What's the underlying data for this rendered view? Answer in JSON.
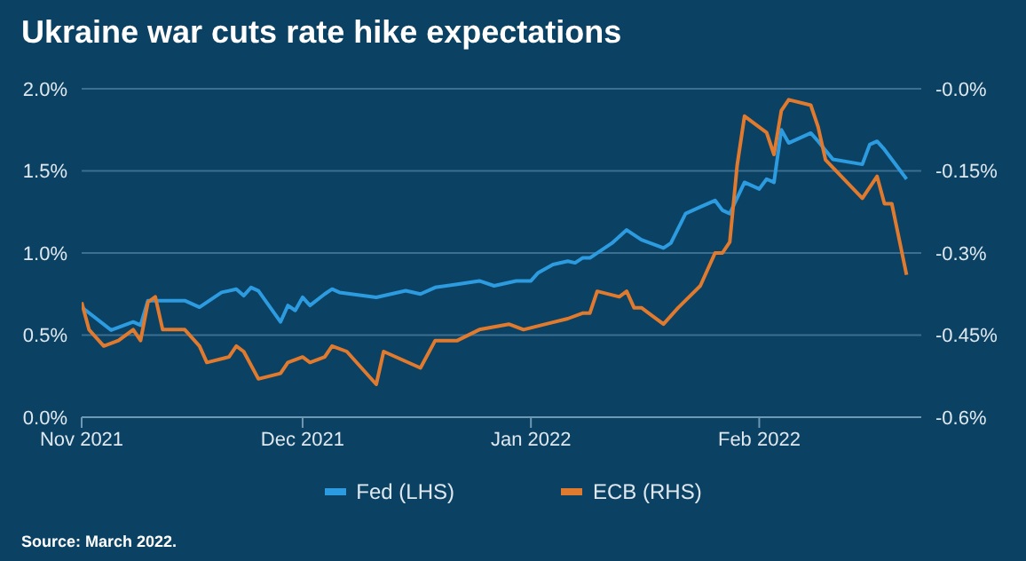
{
  "chart_data": {
    "type": "line",
    "title": "Ukraine war cuts rate hike expectations",
    "annotations": [
      "Source: March 2022."
    ],
    "xlim": [
      "2021-11-01",
      "2022-02-23"
    ],
    "xticks": [
      {
        "value": "2021-11-01",
        "label": "Nov 2021"
      },
      {
        "value": "2021-12-01",
        "label": "Dec 2021"
      },
      {
        "value": "2022-01-01",
        "label": "Jan 2022"
      },
      {
        "value": "2022-02-01",
        "label": "Feb 2022"
      }
    ],
    "ylim": [
      0,
      2
    ],
    "yticks": [
      {
        "value": 0,
        "label": "0.0%"
      },
      {
        "value": 0.5,
        "label": "0.5%"
      },
      {
        "value": 1,
        "label": "1.0%"
      },
      {
        "value": 1.5,
        "label": "1.5%"
      },
      {
        "value": 2,
        "label": "2.0%"
      }
    ],
    "y2lim": [
      -0.6,
      0
    ],
    "y2ticks": [
      {
        "value": -0.6,
        "label": "-0.6%"
      },
      {
        "value": -0.45,
        "label": "-0.45%"
      },
      {
        "value": -0.3,
        "label": "-0.3%"
      },
      {
        "value": -0.15,
        "label": "-0.15%"
      },
      {
        "value": 0,
        "label": "-0.0%"
      }
    ],
    "grid": "y",
    "legend": "bottom",
    "marker": "none",
    "line_style": "solid",
    "series": [
      {
        "name": "Fed (LHS)",
        "color": "#2d9be0",
        "x": [
          "2021-11-01",
          "2021-11-05",
          "2021-11-08",
          "2021-11-09",
          "2021-11-10",
          "2021-11-15",
          "2021-11-17",
          "2021-11-20",
          "2021-11-22",
          "2021-11-23",
          "2021-11-24",
          "2021-11-25",
          "2021-11-28",
          "2021-11-29",
          "2021-11-30",
          "2021-12-01",
          "2021-12-02",
          "2021-12-04",
          "2021-12-05",
          "2021-12-06",
          "2021-12-11",
          "2021-12-15",
          "2021-12-17",
          "2021-12-19",
          "2021-12-22",
          "2021-12-25",
          "2021-12-27",
          "2021-12-30",
          "2022-01-01",
          "2022-01-02",
          "2022-01-04",
          "2022-01-06",
          "2022-01-07",
          "2022-01-08",
          "2022-01-09",
          "2022-01-12",
          "2022-01-14",
          "2022-01-16",
          "2022-01-19",
          "2022-01-20",
          "2022-01-22",
          "2022-01-24",
          "2022-01-26",
          "2022-01-27",
          "2022-01-28",
          "2022-01-30",
          "2022-02-01",
          "2022-02-02",
          "2022-02-03",
          "2022-02-04",
          "2022-02-05",
          "2022-02-08",
          "2022-02-09",
          "2022-02-11",
          "2022-02-15",
          "2022-02-16",
          "2022-02-17",
          "2022-02-18",
          "2022-02-21"
        ],
        "values": [
          0.67,
          0.53,
          0.58,
          0.56,
          0.71,
          0.71,
          0.67,
          0.76,
          0.78,
          0.74,
          0.79,
          0.77,
          0.58,
          0.68,
          0.65,
          0.73,
          0.68,
          0.75,
          0.78,
          0.76,
          0.73,
          0.77,
          0.75,
          0.79,
          0.81,
          0.83,
          0.8,
          0.83,
          0.83,
          0.88,
          0.93,
          0.95,
          0.94,
          0.97,
          0.97,
          1.06,
          1.14,
          1.08,
          1.03,
          1.06,
          1.24,
          1.28,
          1.32,
          1.26,
          1.24,
          1.43,
          1.39,
          1.45,
          1.43,
          1.75,
          1.67,
          1.73,
          1.68,
          1.57,
          1.54,
          1.66,
          1.68,
          1.63,
          1.45
        ]
      },
      {
        "name": "ECB (RHS)",
        "color": "#e07a2e",
        "axis": "y2",
        "x": [
          "2021-11-01",
          "2021-11-02",
          "2021-11-04",
          "2021-11-06",
          "2021-11-08",
          "2021-11-09",
          "2021-11-10",
          "2021-11-11",
          "2021-11-12",
          "2021-11-15",
          "2021-11-17",
          "2021-11-18",
          "2021-11-21",
          "2021-11-22",
          "2021-11-23",
          "2021-11-25",
          "2021-11-28",
          "2021-11-29",
          "2021-12-01",
          "2021-12-02",
          "2021-12-04",
          "2021-12-05",
          "2021-12-07",
          "2021-12-11",
          "2021-12-12",
          "2021-12-17",
          "2021-12-19",
          "2021-12-22",
          "2021-12-25",
          "2021-12-29",
          "2021-12-31",
          "2022-01-03",
          "2022-01-06",
          "2022-01-08",
          "2022-01-09",
          "2022-01-10",
          "2022-01-13",
          "2022-01-14",
          "2022-01-15",
          "2022-01-16",
          "2022-01-17",
          "2022-01-19",
          "2022-01-21",
          "2022-01-24",
          "2022-01-26",
          "2022-01-27",
          "2022-01-28",
          "2022-01-29",
          "2022-01-30",
          "2022-02-02",
          "2022-02-03",
          "2022-02-04",
          "2022-02-05",
          "2022-02-08",
          "2022-02-09",
          "2022-02-10",
          "2022-02-15",
          "2022-02-17",
          "2022-02-18",
          "2022-02-19",
          "2022-02-21"
        ],
        "values": [
          -0.39,
          -0.44,
          -0.47,
          -0.46,
          -0.44,
          -0.46,
          -0.39,
          -0.38,
          -0.44,
          -0.44,
          -0.47,
          -0.5,
          -0.49,
          -0.47,
          -0.48,
          -0.53,
          -0.52,
          -0.5,
          -0.49,
          -0.5,
          -0.49,
          -0.47,
          -0.48,
          -0.54,
          -0.48,
          -0.51,
          -0.46,
          -0.46,
          -0.44,
          -0.43,
          -0.44,
          -0.43,
          -0.42,
          -0.41,
          -0.41,
          -0.37,
          -0.38,
          -0.37,
          -0.4,
          -0.4,
          -0.41,
          -0.43,
          -0.4,
          -0.36,
          -0.3,
          -0.3,
          -0.28,
          -0.14,
          -0.05,
          -0.08,
          -0.12,
          -0.04,
          -0.02,
          -0.03,
          -0.07,
          -0.13,
          -0.2,
          -0.16,
          -0.21,
          -0.21,
          -0.34
        ]
      }
    ]
  }
}
